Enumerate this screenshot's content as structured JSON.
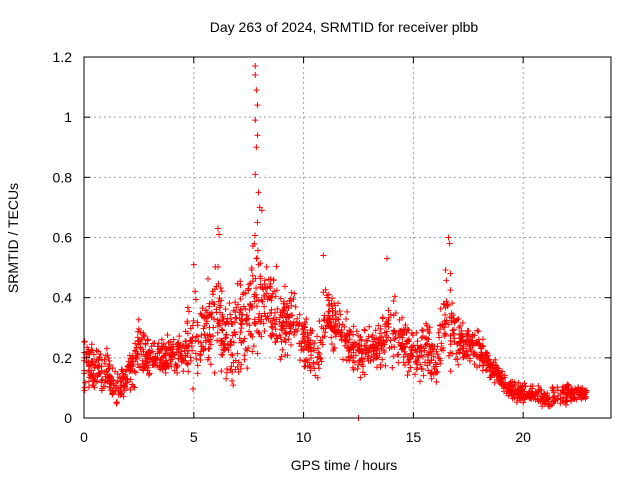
{
  "chart_data": {
    "type": "scatter",
    "title": "Day 263 of 2024, SRMTID for receiver plbb",
    "xlabel": "GPS time / hours",
    "ylabel": "SRMTID / TECUs",
    "xlim": [
      0,
      24
    ],
    "ylim": [
      0,
      1.2
    ],
    "x_ticks": [
      0,
      5,
      10,
      15,
      20
    ],
    "x_tick_labels": [
      "0",
      "5",
      "10",
      "15",
      "20"
    ],
    "y_ticks": [
      0,
      0.2,
      0.4,
      0.6,
      0.8,
      1.0,
      1.2
    ],
    "y_tick_labels": [
      "0",
      "0.2",
      "0.4",
      "0.6",
      "0.8",
      "1",
      "1.2"
    ],
    "grid": true,
    "marker": "+",
    "series": [
      {
        "name": "SRMTID",
        "color": "#ff0000",
        "x_range": [
          0.0,
          22.9
        ],
        "envelope": [
          [
            0.0,
            0.04,
            0.36
          ],
          [
            0.5,
            0.06,
            0.25
          ],
          [
            1.0,
            0.05,
            0.28
          ],
          [
            1.5,
            0.02,
            0.16
          ],
          [
            2.0,
            0.05,
            0.22
          ],
          [
            2.5,
            0.08,
            0.36
          ],
          [
            3.0,
            0.1,
            0.28
          ],
          [
            3.5,
            0.1,
            0.3
          ],
          [
            4.0,
            0.12,
            0.3
          ],
          [
            4.5,
            0.12,
            0.32
          ],
          [
            5.0,
            0.06,
            0.5
          ],
          [
            5.5,
            0.12,
            0.45
          ],
          [
            6.0,
            0.1,
            0.63
          ],
          [
            6.5,
            0.08,
            0.4
          ],
          [
            7.0,
            0.05,
            0.55
          ],
          [
            7.5,
            0.12,
            0.6
          ],
          [
            8.0,
            0.15,
            0.7
          ],
          [
            8.5,
            0.15,
            0.55
          ],
          [
            9.0,
            0.15,
            0.5
          ],
          [
            9.5,
            0.2,
            0.45
          ],
          [
            10.0,
            0.15,
            0.4
          ],
          [
            10.5,
            0.08,
            0.3
          ],
          [
            11.0,
            0.15,
            0.52
          ],
          [
            11.5,
            0.15,
            0.45
          ],
          [
            12.0,
            0.12,
            0.38
          ],
          [
            12.5,
            0.1,
            0.35
          ],
          [
            13.0,
            0.12,
            0.32
          ],
          [
            13.5,
            0.14,
            0.36
          ],
          [
            14.0,
            0.15,
            0.46
          ],
          [
            14.5,
            0.12,
            0.38
          ],
          [
            15.0,
            0.12,
            0.32
          ],
          [
            15.5,
            0.1,
            0.38
          ],
          [
            16.0,
            0.06,
            0.34
          ],
          [
            16.5,
            0.1,
            0.6
          ],
          [
            17.0,
            0.12,
            0.4
          ],
          [
            17.5,
            0.15,
            0.34
          ],
          [
            18.0,
            0.15,
            0.33
          ],
          [
            18.5,
            0.12,
            0.22
          ],
          [
            19.0,
            0.08,
            0.18
          ],
          [
            19.5,
            0.04,
            0.14
          ],
          [
            20.0,
            0.03,
            0.13
          ],
          [
            20.5,
            0.04,
            0.12
          ],
          [
            21.0,
            0.02,
            0.1
          ],
          [
            21.5,
            0.03,
            0.12
          ],
          [
            22.0,
            0.03,
            0.14
          ],
          [
            22.5,
            0.05,
            0.12
          ],
          [
            22.9,
            0.05,
            0.1
          ]
        ],
        "outliers": [
          {
            "x": 7.8,
            "y": 1.17
          },
          {
            "x": 7.8,
            "y": 1.14
          },
          {
            "x": 7.85,
            "y": 1.09
          },
          {
            "x": 7.9,
            "y": 1.04
          },
          {
            "x": 7.8,
            "y": 0.99
          },
          {
            "x": 7.9,
            "y": 0.94
          },
          {
            "x": 7.85,
            "y": 0.9
          },
          {
            "x": 7.8,
            "y": 0.81
          },
          {
            "x": 7.95,
            "y": 0.75
          },
          {
            "x": 8.0,
            "y": 0.7
          },
          {
            "x": 8.1,
            "y": 0.69
          },
          {
            "x": 7.9,
            "y": 0.65
          },
          {
            "x": 6.1,
            "y": 0.63
          },
          {
            "x": 6.15,
            "y": 0.61
          },
          {
            "x": 16.6,
            "y": 0.6
          },
          {
            "x": 16.65,
            "y": 0.58
          },
          {
            "x": 12.5,
            "y": 0.0
          },
          {
            "x": 5.0,
            "y": 0.51
          },
          {
            "x": 13.8,
            "y": 0.53
          },
          {
            "x": 10.9,
            "y": 0.54
          }
        ]
      }
    ]
  }
}
